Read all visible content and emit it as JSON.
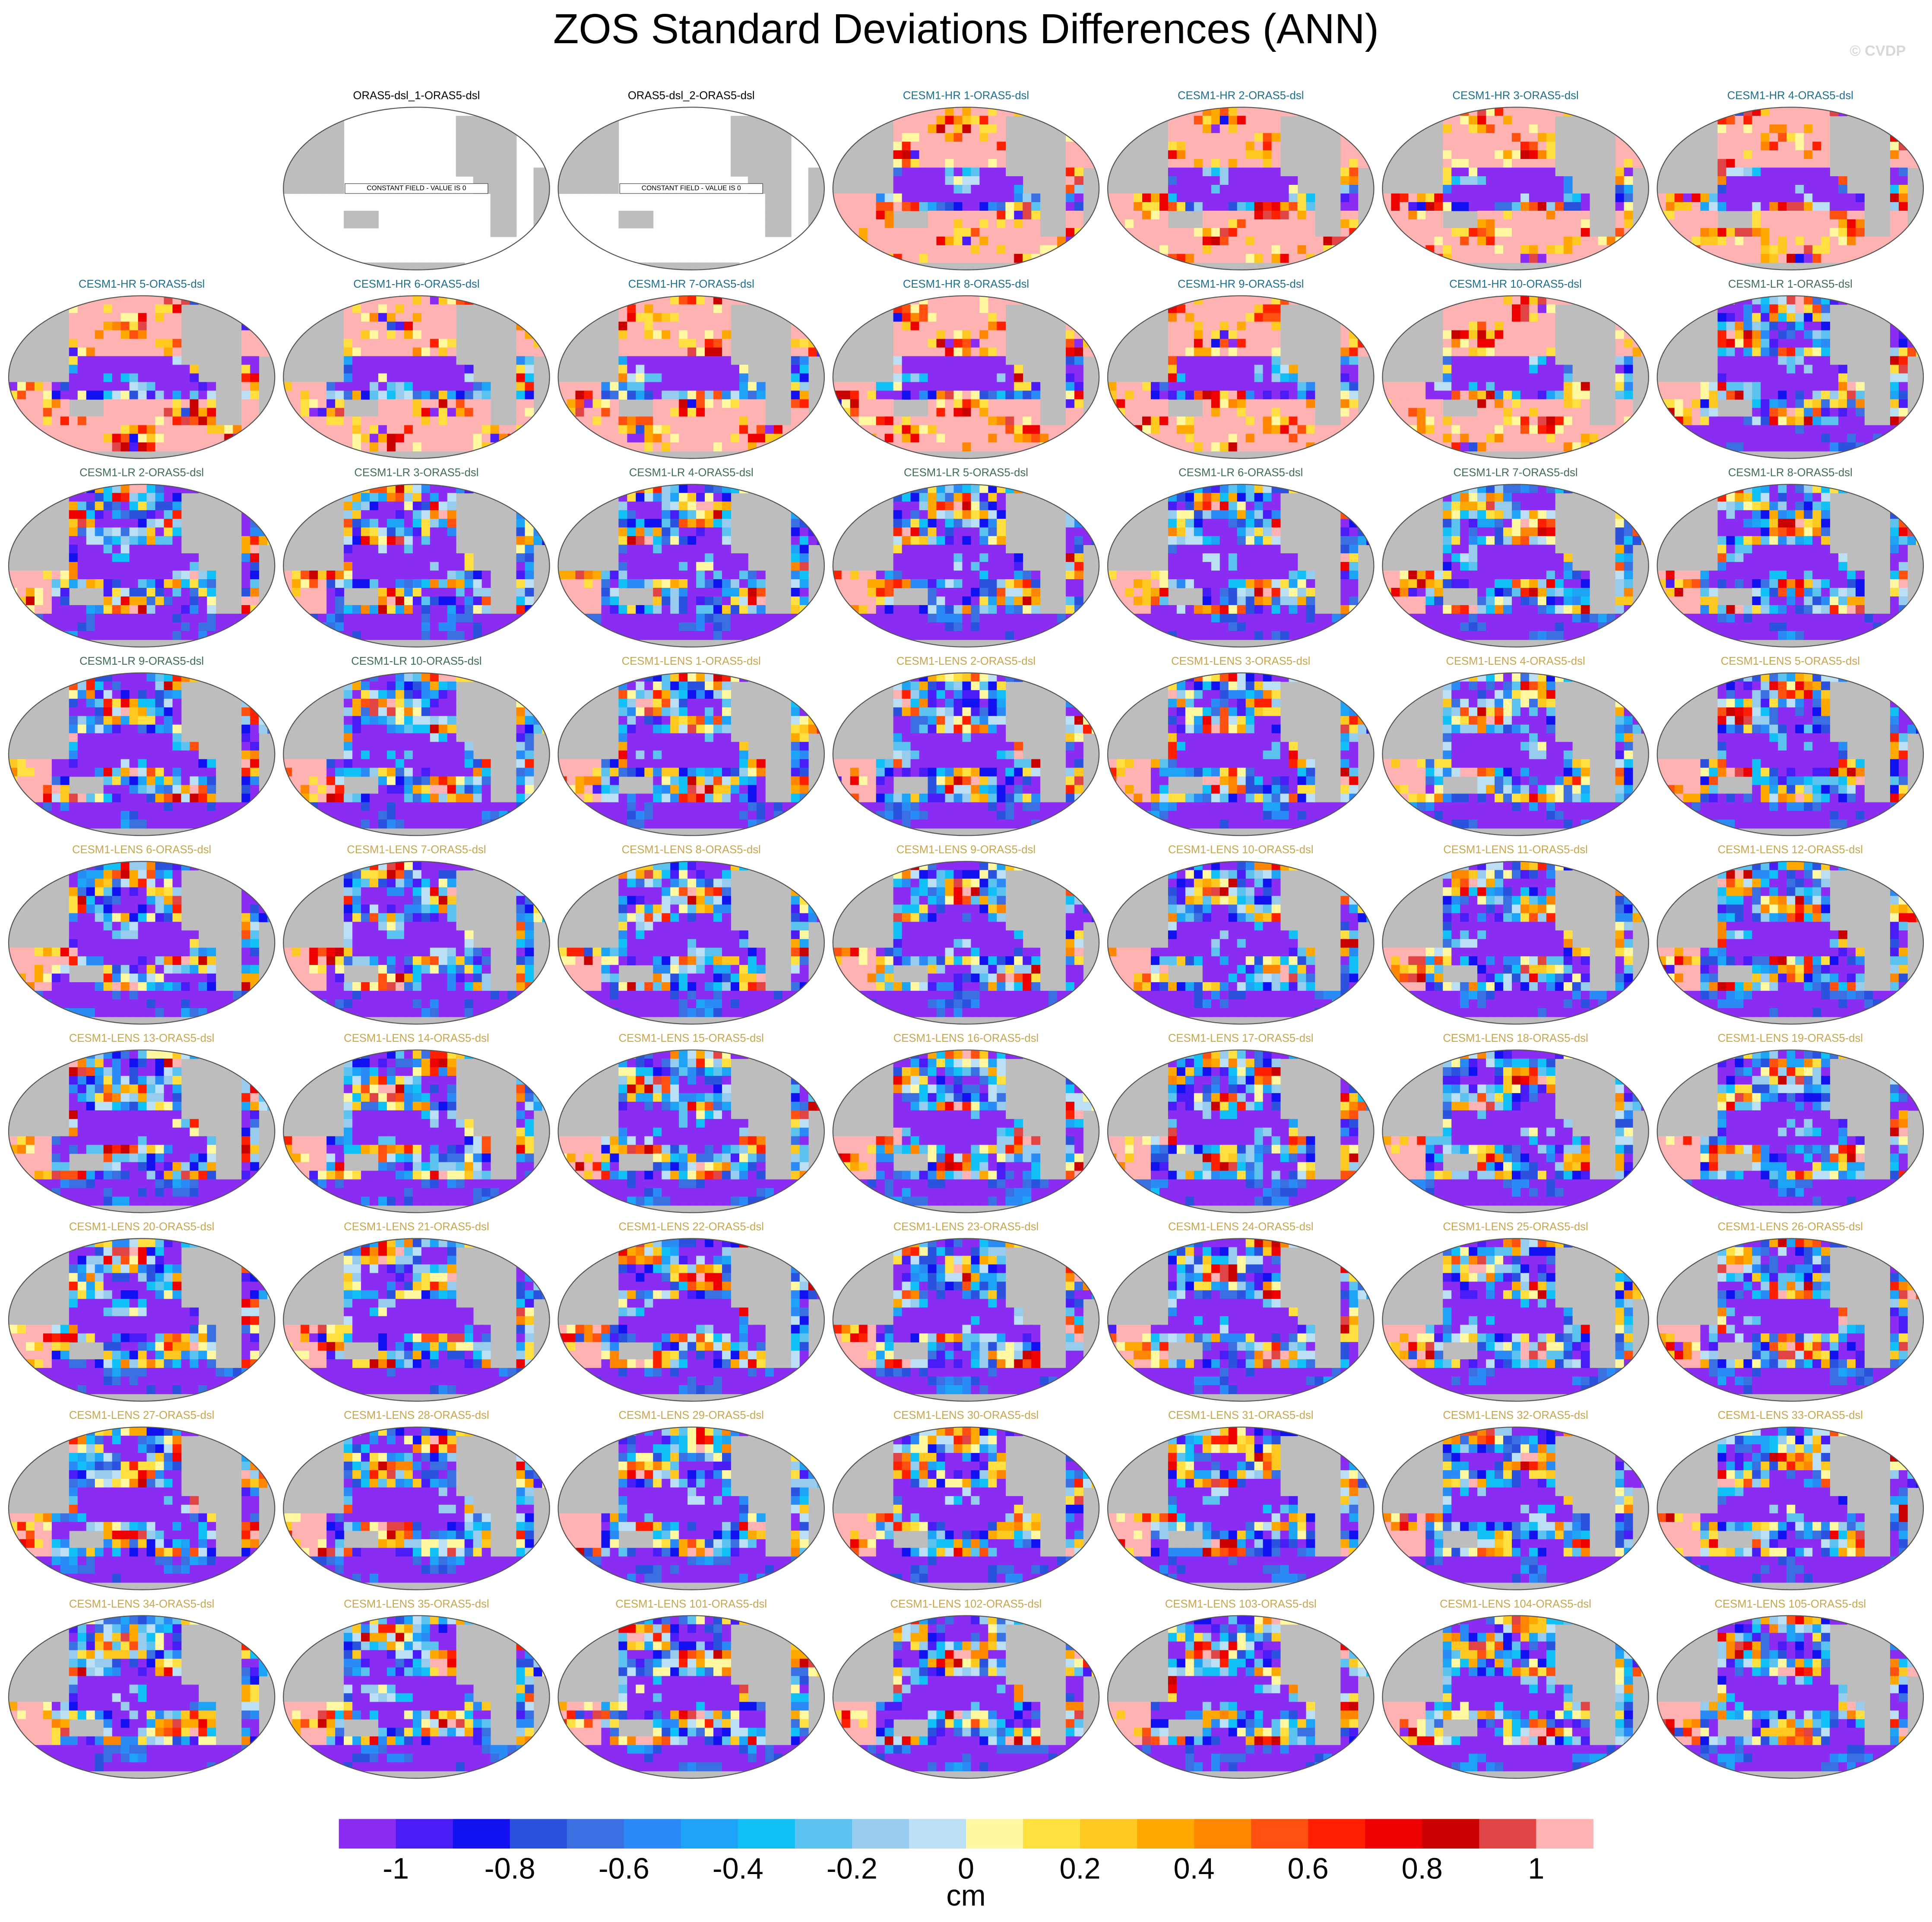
{
  "header": {
    "title": "ZOS Standard Deviations Differences (ANN)",
    "watermark": "© CVDP"
  },
  "panels": [
    {
      "title": "ORAS5-dsl_1-ORAS5-dsl",
      "color": "#000000",
      "annotation": "CONSTANT FIELD - VALUE IS 0"
    },
    {
      "title": "ORAS5-dsl_2-ORAS5-dsl",
      "color": "#000000",
      "annotation": "CONSTANT FIELD - VALUE IS 0"
    },
    {
      "title": "CESM1-HR 1-ORAS5-dsl",
      "color": "#1d6f8f"
    },
    {
      "title": "CESM1-HR 2-ORAS5-dsl",
      "color": "#1d6f8f"
    },
    {
      "title": "CESM1-HR 3-ORAS5-dsl",
      "color": "#1d6f8f"
    },
    {
      "title": "CESM1-HR 4-ORAS5-dsl",
      "color": "#1d6f8f"
    },
    {
      "title": "CESM1-HR 5-ORAS5-dsl",
      "color": "#1d6f8f"
    },
    {
      "title": "CESM1-HR 6-ORAS5-dsl",
      "color": "#1d6f8f"
    },
    {
      "title": "CESM1-HR 7-ORAS5-dsl",
      "color": "#1d6f8f"
    },
    {
      "title": "CESM1-HR 8-ORAS5-dsl",
      "color": "#1d6f8f"
    },
    {
      "title": "CESM1-HR 9-ORAS5-dsl",
      "color": "#1d6f8f"
    },
    {
      "title": "CESM1-HR 10-ORAS5-dsl",
      "color": "#1d6f8f"
    },
    {
      "title": "CESM1-LR 1-ORAS5-dsl",
      "color": "#3f6e55"
    },
    {
      "title": "CESM1-LR 2-ORAS5-dsl",
      "color": "#3f6e55"
    },
    {
      "title": "CESM1-LR 3-ORAS5-dsl",
      "color": "#3f6e55"
    },
    {
      "title": "CESM1-LR 4-ORAS5-dsl",
      "color": "#3f6e55"
    },
    {
      "title": "CESM1-LR 5-ORAS5-dsl",
      "color": "#3f6e55"
    },
    {
      "title": "CESM1-LR 6-ORAS5-dsl",
      "color": "#3f6e55"
    },
    {
      "title": "CESM1-LR 7-ORAS5-dsl",
      "color": "#3f6e55"
    },
    {
      "title": "CESM1-LR 8-ORAS5-dsl",
      "color": "#3f6e55"
    },
    {
      "title": "CESM1-LR 9-ORAS5-dsl",
      "color": "#3f6e55"
    },
    {
      "title": "CESM1-LR 10-ORAS5-dsl",
      "color": "#3f6e55"
    },
    {
      "title": "CESM1-LENS 1-ORAS5-dsl",
      "color": "#c9a64e"
    },
    {
      "title": "CESM1-LENS 2-ORAS5-dsl",
      "color": "#c9a64e"
    },
    {
      "title": "CESM1-LENS 3-ORAS5-dsl",
      "color": "#c9a64e"
    },
    {
      "title": "CESM1-LENS 4-ORAS5-dsl",
      "color": "#c9a64e"
    },
    {
      "title": "CESM1-LENS 5-ORAS5-dsl",
      "color": "#c9a64e"
    },
    {
      "title": "CESM1-LENS 6-ORAS5-dsl",
      "color": "#c9a64e"
    },
    {
      "title": "CESM1-LENS 7-ORAS5-dsl",
      "color": "#c9a64e"
    },
    {
      "title": "CESM1-LENS 8-ORAS5-dsl",
      "color": "#c9a64e"
    },
    {
      "title": "CESM1-LENS 9-ORAS5-dsl",
      "color": "#c9a64e"
    },
    {
      "title": "CESM1-LENS 10-ORAS5-dsl",
      "color": "#c9a64e"
    },
    {
      "title": "CESM1-LENS 11-ORAS5-dsl",
      "color": "#c9a64e"
    },
    {
      "title": "CESM1-LENS 12-ORAS5-dsl",
      "color": "#c9a64e"
    },
    {
      "title": "CESM1-LENS 13-ORAS5-dsl",
      "color": "#c9a64e"
    },
    {
      "title": "CESM1-LENS 14-ORAS5-dsl",
      "color": "#c9a64e"
    },
    {
      "title": "CESM1-LENS 15-ORAS5-dsl",
      "color": "#c9a64e"
    },
    {
      "title": "CESM1-LENS 16-ORAS5-dsl",
      "color": "#c9a64e"
    },
    {
      "title": "CESM1-LENS 17-ORAS5-dsl",
      "color": "#c9a64e"
    },
    {
      "title": "CESM1-LENS 18-ORAS5-dsl",
      "color": "#c9a64e"
    },
    {
      "title": "CESM1-LENS 19-ORAS5-dsl",
      "color": "#c9a64e"
    },
    {
      "title": "CESM1-LENS 20-ORAS5-dsl",
      "color": "#c9a64e"
    },
    {
      "title": "CESM1-LENS 21-ORAS5-dsl",
      "color": "#c9a64e"
    },
    {
      "title": "CESM1-LENS 22-ORAS5-dsl",
      "color": "#c9a64e"
    },
    {
      "title": "CESM1-LENS 23-ORAS5-dsl",
      "color": "#c9a64e"
    },
    {
      "title": "CESM1-LENS 24-ORAS5-dsl",
      "color": "#c9a64e"
    },
    {
      "title": "CESM1-LENS 25-ORAS5-dsl",
      "color": "#c9a64e"
    },
    {
      "title": "CESM1-LENS 26-ORAS5-dsl",
      "color": "#c9a64e"
    },
    {
      "title": "CESM1-LENS 27-ORAS5-dsl",
      "color": "#c9a64e"
    },
    {
      "title": "CESM1-LENS 28-ORAS5-dsl",
      "color": "#c9a64e"
    },
    {
      "title": "CESM1-LENS 29-ORAS5-dsl",
      "color": "#c9a64e"
    },
    {
      "title": "CESM1-LENS 30-ORAS5-dsl",
      "color": "#c9a64e"
    },
    {
      "title": "CESM1-LENS 31-ORAS5-dsl",
      "color": "#c9a64e"
    },
    {
      "title": "CESM1-LENS 32-ORAS5-dsl",
      "color": "#c9a64e"
    },
    {
      "title": "CESM1-LENS 33-ORAS5-dsl",
      "color": "#c9a64e"
    },
    {
      "title": "CESM1-LENS 34-ORAS5-dsl",
      "color": "#c9a64e"
    },
    {
      "title": "CESM1-LENS 35-ORAS5-dsl",
      "color": "#c9a64e"
    },
    {
      "title": "CESM1-LENS 101-ORAS5-dsl",
      "color": "#c9a64e"
    },
    {
      "title": "CESM1-LENS 102-ORAS5-dsl",
      "color": "#c9a64e"
    },
    {
      "title": "CESM1-LENS 103-ORAS5-dsl",
      "color": "#c9a64e"
    },
    {
      "title": "CESM1-LENS 104-ORAS5-dsl",
      "color": "#c9a64e"
    },
    {
      "title": "CESM1-LENS 105-ORAS5-dsl",
      "color": "#c9a64e"
    }
  ],
  "colorbar": {
    "colors": [
      "#8a2cf2",
      "#4a1cf6",
      "#1212f0",
      "#2a52de",
      "#3a70e2",
      "#2a8af6",
      "#1ea4f6",
      "#12c0f8",
      "#5cc2f0",
      "#98ccef",
      "#bbe0f6",
      "#fff8a0",
      "#ffe040",
      "#ffc820",
      "#ffa800",
      "#ff8600",
      "#ff5010",
      "#ff2000",
      "#ee0000",
      "#c80000",
      "#e04444",
      "#ffb2b2"
    ],
    "ticks": [
      -1,
      -0.8,
      -0.6,
      -0.4,
      -0.2,
      0,
      0.2,
      0.4,
      0.6,
      0.8,
      1
    ],
    "unit": "cm"
  }
}
